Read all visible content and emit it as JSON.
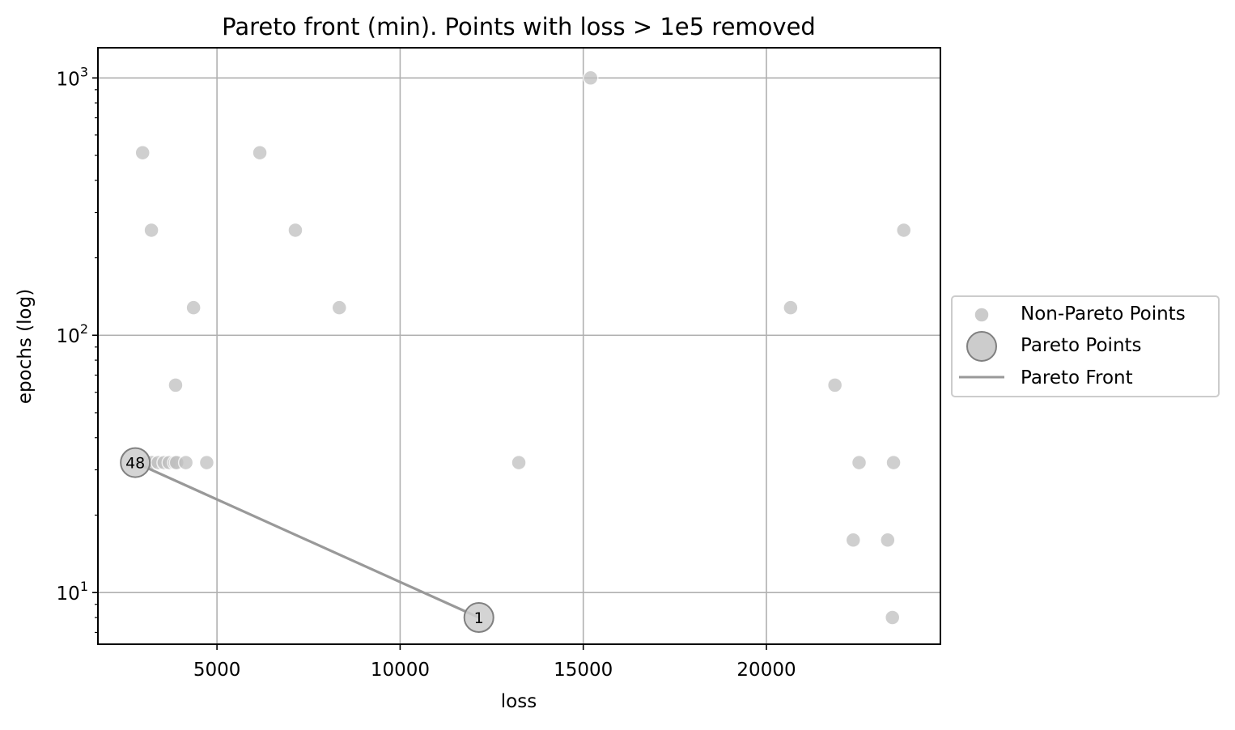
{
  "chart_data": {
    "type": "scatter",
    "title": "Pareto front (min). Points with loss > 1e5 removed",
    "xlabel": "loss",
    "ylabel": "epochs (log)",
    "x_scale": "linear",
    "y_scale": "log",
    "xlim": [
      1750,
      24750
    ],
    "ylim": [
      6.3,
      1310
    ],
    "x_ticks": [
      5000,
      10000,
      15000,
      20000
    ],
    "x_tick_labels": [
      "5000",
      "10000",
      "15000",
      "20000"
    ],
    "y_ticks": [
      10,
      100,
      1000
    ],
    "y_tick_labels": [
      {
        "base": "10",
        "exp": "1"
      },
      {
        "base": "10",
        "exp": "2"
      },
      {
        "base": "10",
        "exp": "3"
      }
    ],
    "grid": true,
    "legend_position": "center-right outside",
    "colors": {
      "non_pareto": "#bfbfbf",
      "pareto_fill": "#cccccc",
      "pareto_edge": "#808080",
      "front_line": "#999999",
      "grid": "#b0b0b0"
    },
    "series": [
      {
        "name": "Non-Pareto Points",
        "points": [
          [
            15200,
            1000
          ],
          [
            2970,
            512
          ],
          [
            6170,
            512
          ],
          [
            3210,
            256
          ],
          [
            7140,
            256
          ],
          [
            23750,
            256
          ],
          [
            4360,
            128
          ],
          [
            8340,
            128
          ],
          [
            20660,
            128
          ],
          [
            3870,
            64
          ],
          [
            21870,
            64
          ],
          [
            3050,
            32
          ],
          [
            3220,
            32
          ],
          [
            3400,
            32
          ],
          [
            3560,
            32
          ],
          [
            3700,
            32
          ],
          [
            3850,
            32
          ],
          [
            3900,
            32
          ],
          [
            4150,
            32
          ],
          [
            4720,
            32
          ],
          [
            13240,
            32
          ],
          [
            22530,
            32
          ],
          [
            23470,
            32
          ],
          [
            22370,
            16
          ],
          [
            23310,
            16
          ],
          [
            23440,
            8
          ]
        ]
      },
      {
        "name": "Pareto Points",
        "points": [
          {
            "x": 2770,
            "y": 32,
            "label": "48"
          },
          {
            "x": 12150,
            "y": 8,
            "label": "1"
          }
        ]
      },
      {
        "name": "Pareto Front",
        "points": [
          [
            2770,
            32
          ],
          [
            12150,
            8
          ]
        ]
      }
    ]
  }
}
